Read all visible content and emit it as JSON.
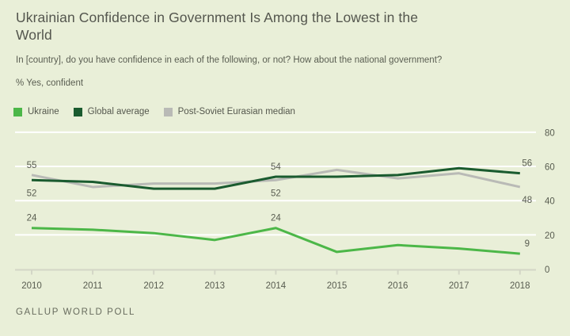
{
  "header": {
    "title": "Ukrainian Confidence in Government Is Among the Lowest in the World",
    "subtitle": "In [country], do you have confidence in each of the following, or not? How about the national government?",
    "metric_label": "% Yes, confident"
  },
  "footer": {
    "source": "GALLUP WORLD POLL"
  },
  "colors": {
    "background": "#e9efd8",
    "gridline": "#ffffff",
    "axis": "#d3d6c6",
    "ukraine": "#4cb748",
    "global_average": "#1a5b2f",
    "post_soviet": "#b9bab6"
  },
  "chart_data": {
    "type": "line",
    "title": "Ukrainian Confidence in Government Is Among the Lowest in the World",
    "xlabel": "",
    "ylabel": "% Yes, confident",
    "x": [
      2010,
      2011,
      2012,
      2013,
      2014,
      2015,
      2016,
      2017,
      2018
    ],
    "series": [
      {
        "name": "Ukraine",
        "color": "#4cb748",
        "values": [
          24,
          23,
          21,
          17,
          24,
          10,
          14,
          12,
          9
        ]
      },
      {
        "name": "Global average",
        "color": "#1a5b2f",
        "values": [
          52,
          51,
          47,
          47,
          54,
          54,
          55,
          59,
          56
        ]
      },
      {
        "name": "Post-Soviet Eurasian median",
        "color": "#b9bab6",
        "values": [
          55,
          48,
          50,
          50,
          52,
          58,
          53,
          56,
          48
        ]
      }
    ],
    "point_labels": [
      {
        "series": 2,
        "xi": 0,
        "text": "55",
        "pos": "above"
      },
      {
        "series": 1,
        "xi": 0,
        "text": "52",
        "pos": "below"
      },
      {
        "series": 0,
        "xi": 0,
        "text": "24",
        "pos": "above"
      },
      {
        "series": 1,
        "xi": 4,
        "text": "54",
        "pos": "above"
      },
      {
        "series": 2,
        "xi": 4,
        "text": "52",
        "pos": "below"
      },
      {
        "series": 0,
        "xi": 4,
        "text": "24",
        "pos": "above"
      },
      {
        "series": 1,
        "xi": 8,
        "text": "56",
        "pos": "above"
      },
      {
        "series": 2,
        "xi": 8,
        "text": "48",
        "pos": "below"
      },
      {
        "series": 0,
        "xi": 8,
        "text": "9",
        "pos": "above"
      }
    ],
    "ylim": [
      0,
      80
    ],
    "yticks": [
      0,
      20,
      40,
      60,
      80
    ],
    "grid": true,
    "legend_position": "top-left",
    "y_axis_side": "right"
  }
}
